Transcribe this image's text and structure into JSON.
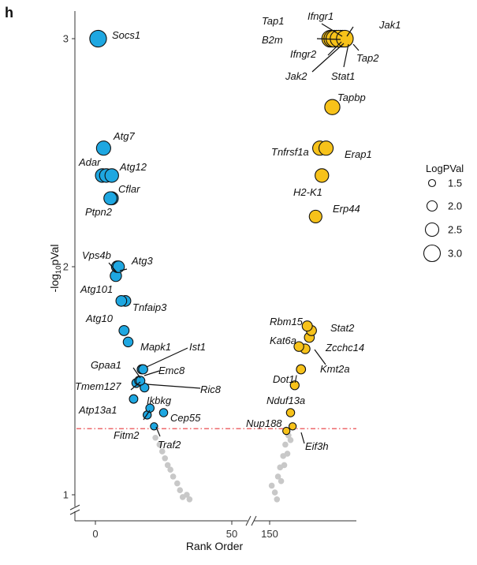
{
  "panel_letter": "h",
  "chart_data": {
    "type": "scatter",
    "xlabel": "Rank Order",
    "ylabel": "-log10pVal",
    "ylabel_parts": {
      "pre": "-log",
      "sub": "10",
      "post": "pVal"
    },
    "y_ticks": [
      1,
      2,
      3
    ],
    "ylim": [
      0.93,
      3.12
    ],
    "x_ticks": [
      {
        "label": "0",
        "x": 0
      },
      {
        "label": "50",
        "x": 50
      },
      {
        "label": "150",
        "x": 150
      }
    ],
    "x_axis_break": true,
    "threshold": {
      "y": 1.29,
      "style": "dash-dot",
      "color": "#e8383d"
    },
    "legend": {
      "title": "LogPVal",
      "entries": [
        {
          "label": "1.5",
          "value": 1.5
        },
        {
          "label": "2.0",
          "value": 2.0
        },
        {
          "label": "2.5",
          "value": 2.5
        },
        {
          "label": "3.0",
          "value": 3.0
        }
      ]
    },
    "colors": {
      "left": "#1ea7e1",
      "right": "#f7c21a",
      "nonsig": "#c8c8c8",
      "annot": "#e8383d"
    },
    "series": [
      {
        "name": "left",
        "points": [
          {
            "label": "Socs1",
            "x": 1,
            "y": 3.0
          },
          {
            "label": "Atg7",
            "x": 3,
            "y": 2.52
          },
          {
            "label": "Adar",
            "x": 2.5,
            "y": 2.4
          },
          {
            "label": "",
            "x": 4,
            "y": 2.4
          },
          {
            "label": "Atg12",
            "x": 6,
            "y": 2.4
          },
          {
            "label": "Cflar",
            "x": 6,
            "y": 2.3
          },
          {
            "label": "Ptpn2",
            "x": 5.5,
            "y": 2.3
          },
          {
            "label": "Vps4b",
            "x": 8,
            "y": 2.0
          },
          {
            "label": "Atg3",
            "x": 8.5,
            "y": 2.0
          },
          {
            "label": "Atg101",
            "x": 7.5,
            "y": 1.96
          },
          {
            "label": "Tnfaip3",
            "x": 11,
            "y": 1.85
          },
          {
            "label": "",
            "x": 9.5,
            "y": 1.85
          },
          {
            "label": "Atg10",
            "x": 10.5,
            "y": 1.72
          },
          {
            "label": "",
            "x": 12,
            "y": 1.67
          },
          {
            "label": "Mapk1",
            "x": 17,
            "y": 1.55
          },
          {
            "label": "Ist1",
            "x": 17.5,
            "y": 1.55
          },
          {
            "label": "Gpaa1",
            "x": 16,
            "y": 1.5
          },
          {
            "label": "Emc8",
            "x": 16.5,
            "y": 1.5
          },
          {
            "label": "Tmem127",
            "x": 15,
            "y": 1.49
          },
          {
            "label": "Ric8",
            "x": 18,
            "y": 1.47
          },
          {
            "label": "Atp13a1",
            "x": 14,
            "y": 1.42
          },
          {
            "label": "Ikbkg",
            "x": 20,
            "y": 1.38
          },
          {
            "label": "Cep55",
            "x": 25,
            "y": 1.36
          },
          {
            "label": "Fitm2",
            "x": 19,
            "y": 1.35
          },
          {
            "label": "Traf2",
            "x": 21.5,
            "y": 1.3
          }
        ]
      },
      {
        "name": "right",
        "points": [
          {
            "label": "Tap1",
            "x": 179,
            "y": 3.0
          },
          {
            "label": "Ifngr1",
            "x": 180,
            "y": 3.0
          },
          {
            "label": "Jak1",
            "x": 182,
            "y": 3.0
          },
          {
            "label": "B2m",
            "x": 181,
            "y": 3.0
          },
          {
            "label": "Ifngr2",
            "x": 184,
            "y": 3.0
          },
          {
            "label": "Tap2",
            "x": 185,
            "y": 3.0
          },
          {
            "label": "Jak2",
            "x": 183,
            "y": 3.0
          },
          {
            "label": "Stat1",
            "x": 186,
            "y": 3.0
          },
          {
            "label": "Tapbp",
            "x": 180,
            "y": 2.7
          },
          {
            "label": "Tnfrsf1a",
            "x": 174,
            "y": 2.52
          },
          {
            "label": "Erap1",
            "x": 177,
            "y": 2.52
          },
          {
            "label": "H2-K1",
            "x": 175,
            "y": 2.4
          },
          {
            "label": "Erp44",
            "x": 172,
            "y": 2.22
          },
          {
            "label": "Rbm15",
            "x": 168,
            "y": 1.74
          },
          {
            "label": "Stat2",
            "x": 170,
            "y": 1.72
          },
          {
            "label": "",
            "x": 169,
            "y": 1.69
          },
          {
            "label": "Kat6a",
            "x": 164,
            "y": 1.65
          },
          {
            "label": "Zcchc14",
            "x": 167,
            "y": 1.64
          },
          {
            "label": "Kmt2a",
            "x": 165,
            "y": 1.55
          },
          {
            "label": "Dot1l",
            "x": 162,
            "y": 1.48
          },
          {
            "label": "Nduf13a",
            "x": 160,
            "y": 1.36
          },
          {
            "label": "Nup188",
            "x": 161,
            "y": 1.3
          },
          {
            "label": "Eif3h",
            "x": 158,
            "y": 1.28
          }
        ]
      },
      {
        "name": "nonsig",
        "points": [
          {
            "label": "",
            "x": 22,
            "y": 1.25
          },
          {
            "label": "",
            "x": 23.5,
            "y": 1.22
          },
          {
            "label": "",
            "x": 24.5,
            "y": 1.19
          },
          {
            "label": "",
            "x": 25.5,
            "y": 1.16
          },
          {
            "label": "",
            "x": 26.5,
            "y": 1.13
          },
          {
            "label": "",
            "x": 27.5,
            "y": 1.11
          },
          {
            "label": "",
            "x": 28.5,
            "y": 1.08
          },
          {
            "label": "",
            "x": 30,
            "y": 1.05
          },
          {
            "label": "",
            "x": 31,
            "y": 1.02
          },
          {
            "label": "",
            "x": 32,
            "y": 0.99
          },
          {
            "label": "",
            "x": 33.5,
            "y": 1.0
          },
          {
            "label": "",
            "x": 34.5,
            "y": 0.98
          },
          {
            "label": "",
            "x": 151,
            "y": 1.04
          },
          {
            "label": "",
            "x": 152.5,
            "y": 1.01
          },
          {
            "label": "",
            "x": 153.5,
            "y": 0.98
          },
          {
            "label": "",
            "x": 154,
            "y": 1.08
          },
          {
            "label": "",
            "x": 155,
            "y": 1.12
          },
          {
            "label": "",
            "x": 155.5,
            "y": 1.06
          },
          {
            "label": "",
            "x": 156.5,
            "y": 1.17
          },
          {
            "label": "",
            "x": 157,
            "y": 1.13
          },
          {
            "label": "",
            "x": 157.5,
            "y": 1.22
          },
          {
            "label": "",
            "x": 158.5,
            "y": 1.18
          },
          {
            "label": "",
            "x": 159,
            "y": 1.26
          },
          {
            "label": "",
            "x": 160,
            "y": 1.24
          }
        ]
      }
    ]
  }
}
